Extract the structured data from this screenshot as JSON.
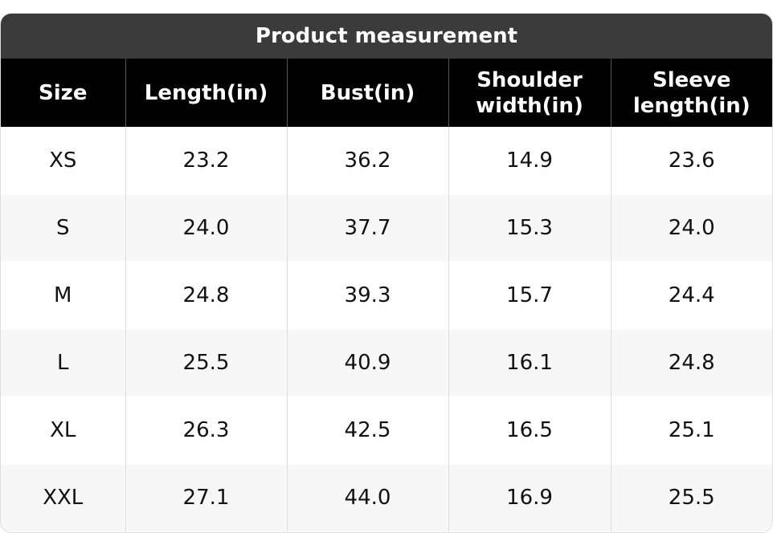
{
  "title": "Product measurement",
  "table": {
    "header": [
      "Size",
      "Length(in)",
      "Bust(in)",
      "Shoulder width(in)",
      "Sleeve length(in)"
    ],
    "rows": [
      [
        "XS",
        "23.2",
        "36.2",
        "14.9",
        "23.6"
      ],
      [
        "S",
        "24.0",
        "37.7",
        "15.3",
        "24.0"
      ],
      [
        "M",
        "24.8",
        "39.3",
        "15.7",
        "24.4"
      ],
      [
        "L",
        "25.5",
        "40.9",
        "16.1",
        "24.8"
      ],
      [
        "XL",
        "26.3",
        "42.5",
        "16.5",
        "25.1"
      ],
      [
        "XXL",
        "27.1",
        "44.0",
        "16.9",
        "25.5"
      ]
    ]
  }
}
